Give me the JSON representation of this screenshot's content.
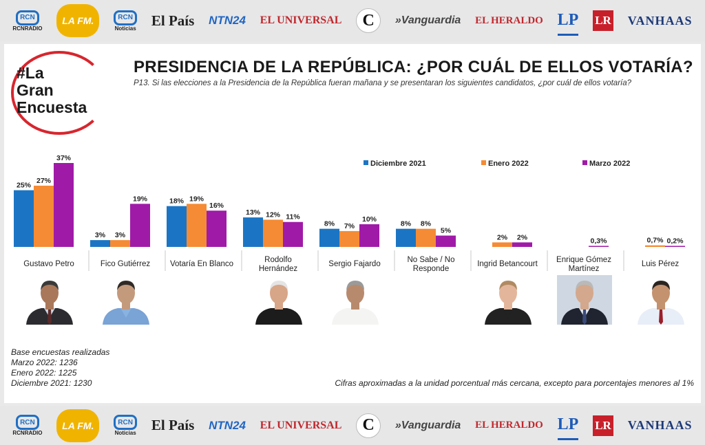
{
  "logos": {
    "rcn_radio": "RCNRADIO",
    "la_fm": "LA FM.",
    "rcn_noticias": "Noticias",
    "el_pais": "El País",
    "ntn24": "NTN24",
    "el_universal": "EL UNIVERSAL",
    "el_colombiano": "C",
    "vanguardia": "»Vanguardia",
    "el_heraldo": "EL HERALDO",
    "la_patria": "LP",
    "la_republica": "LR",
    "vanhaas": "VANHAAS"
  },
  "brand": {
    "hashtag_line1": "#La",
    "hashtag_line2": "Gran",
    "hashtag_line3": "Encuesta",
    "accent": "#d7262e"
  },
  "title": "PRESIDENCIA DE LA REPÚBLICA: ¿POR CUÁL DE ELLOS VOTARÍA?",
  "question": "P13. Si las elecciones a la Presidencia de la República fueran mañana y se presentaran los siguientes candidatos, ¿por cuál de ellos votaría?",
  "footer": {
    "base_title": "Base encuestas realizadas",
    "base_lines": [
      "Marzo 2022: 1236",
      "Enero 2022: 1225",
      "Diciembre 2021: 1230"
    ],
    "note": "Cifras aproximadas a la unidad porcentual más cercana, excepto para porcentajes menores al 1%"
  },
  "chart_data": {
    "type": "bar",
    "categories": [
      "Gustavo Petro",
      "Fico Gutiérrez",
      "Votaría En Blanco",
      "Rodolfo Hernández",
      "Sergio Fajardo",
      "No Sabe / No Responde",
      "Ingrid Betancourt",
      "Enrique Gómez Martínez",
      "Luis Pérez"
    ],
    "category_lines": [
      [
        "Gustavo Petro"
      ],
      [
        "Fico Gutiérrez"
      ],
      [
        "Votaría En Blanco"
      ],
      [
        "Rodolfo",
        "Hernández"
      ],
      [
        "Sergio Fajardo"
      ],
      [
        "No Sabe / No",
        "Responde"
      ],
      [
        "Ingrid Betancourt"
      ],
      [
        "Enrique Gómez",
        "Martínez"
      ],
      [
        "Luis Pérez"
      ]
    ],
    "series": [
      {
        "name": "Diciembre 2021",
        "color": "#1b75c4",
        "values": [
          25,
          3,
          18,
          13,
          8,
          8,
          null,
          null,
          null
        ],
        "labels": [
          "25%",
          "3%",
          "18%",
          "13%",
          "8%",
          "8%",
          "",
          "",
          ""
        ]
      },
      {
        "name": "Enero 2022",
        "color": "#f58b34",
        "values": [
          27,
          3,
          19,
          12,
          7,
          8,
          2,
          null,
          0.7
        ],
        "labels": [
          "27%",
          "3%",
          "19%",
          "12%",
          "7%",
          "8%",
          "2%",
          "",
          "0,7%"
        ]
      },
      {
        "name": "Marzo 2022",
        "color": "#a01aa8",
        "values": [
          37,
          19,
          16,
          11,
          10,
          5,
          2,
          0.3,
          0.2
        ],
        "labels": [
          "37%",
          "19%",
          "16%",
          "11%",
          "10%",
          "5%",
          "2%",
          "0,3%",
          "0,2%"
        ]
      }
    ],
    "ylim": [
      0,
      37
    ],
    "legend_position": "top-right",
    "grid": false
  },
  "portraits": [
    {
      "candidate": "Gustavo Petro",
      "suit": "#2b2b30",
      "shirt": "#cfd6e3",
      "skin": "#a9785a",
      "hair": "#3a3a3a",
      "tie": "#5a2a2a",
      "bg": "#ffffff"
    },
    {
      "candidate": "Fico Gutiérrez",
      "suit": "#7aa3d6",
      "shirt": "#8ab2e0",
      "skin": "#c49a7d",
      "hair": "#2f2a26",
      "tie": "",
      "bg": "#ffffff"
    },
    {
      "candidate": "Rodolfo Hernández",
      "suit": "#1c1c1c",
      "shirt": "#1c1c1c",
      "skin": "#d7a588",
      "hair": "#e4e4e4",
      "tie": "",
      "bg": "#ffffff"
    },
    {
      "candidate": "Sergio Fajardo",
      "suit": "#f4f4f2",
      "shirt": "#f4f4f2",
      "skin": "#b88a6d",
      "hair": "#9a9a9a",
      "tie": "",
      "bg": "#ffffff"
    },
    {
      "candidate": "Ingrid Betancourt",
      "suit": "#222222",
      "shirt": "#222222",
      "skin": "#e3b69b",
      "hair": "#b08a62",
      "tie": "",
      "bg": "#ffffff"
    },
    {
      "candidate": "Enrique Gómez Martínez",
      "suit": "#1f2430",
      "shirt": "#e7ecf3",
      "skin": "#d3a88c",
      "hair": "#b9b9b9",
      "tie": "#3a4a7a",
      "bg": "#cfd7e2"
    },
    {
      "candidate": "Luis Pérez",
      "suit": "#e8eef7",
      "shirt": "#e8eef7",
      "skin": "#c4926f",
      "hair": "#2a2420",
      "tie": "#9a1f2a",
      "bg": "#ffffff"
    }
  ]
}
